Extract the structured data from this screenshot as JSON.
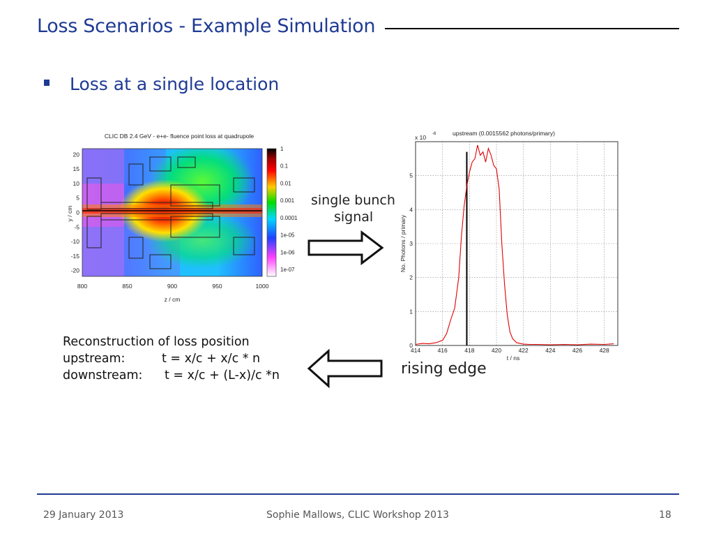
{
  "slide": {
    "title": "Loss Scenarios - Example Simulation",
    "bullet": "Loss at a single location",
    "annotations": {
      "single_bunch_line1": "single bunch",
      "single_bunch_line2": "signal",
      "rising_edge": "rising edge"
    },
    "reconstruction": {
      "heading": "Reconstruction of loss position",
      "upstream_label": "upstream:",
      "upstream_eq": "t = x/c + x/c * n",
      "downstream_label": "downstream:",
      "downstream_eq": "t = x/c + (L-x)/c *n"
    },
    "arrow_right_icon": "arrow-right-outline-icon",
    "arrow_left_icon": "arrow-left-outline-icon"
  },
  "footer": {
    "date": "29 January 2013",
    "center": "Sophie Mallows, CLIC Workshop 2013",
    "page": "18"
  },
  "chart_data": [
    {
      "type": "heatmap",
      "title": "CLIC DB 2.4 GeV - e+e- fluence point loss at quadrupole",
      "xlabel": "z / cm",
      "ylabel": "y / cm",
      "xlim": [
        800,
        1000
      ],
      "ylim": [
        -22,
        22
      ],
      "x_ticks": [
        "800",
        "850",
        "900",
        "950",
        "1000"
      ],
      "y_ticks": [
        "20",
        "15",
        "10",
        "5",
        "0",
        "-5",
        "-10",
        "-15",
        "-20"
      ],
      "colorbar_ticks": [
        "1",
        "0.1",
        "0.01",
        "0.001",
        "0.0001",
        "1e-05",
        "1e-06",
        "1e-07"
      ],
      "colors": [
        "#000000",
        "#ff0000",
        "#ffff00",
        "#00ff00",
        "#00ffff",
        "#0000ff",
        "#ff00ff",
        "#ffffff"
      ]
    },
    {
      "type": "line",
      "title": "upstream (0.0015562 photons/primary)",
      "y_multiplier": "x 10",
      "y_exponent": "-6",
      "xlabel": "t / ns",
      "ylabel": "No. Photons / primary",
      "xlim": [
        414,
        429
      ],
      "ylim": [
        0,
        6
      ],
      "x_ticks": [
        "414",
        "416",
        "418",
        "420",
        "422",
        "424",
        "426",
        "428"
      ],
      "y_ticks": [
        "0",
        "1",
        "2",
        "3",
        "4",
        "5"
      ],
      "marker_line_x": 417.8,
      "grid": true,
      "color": "#e00000",
      "series": [
        {
          "x": [
            414.0,
            414.5,
            415.0,
            415.5,
            416.0,
            416.3,
            416.6,
            416.9,
            417.2,
            417.4,
            417.6,
            417.8,
            418.0,
            418.2,
            418.4,
            418.6,
            418.8,
            419.0,
            419.2,
            419.4,
            419.6,
            419.8,
            420.0,
            420.2,
            420.4,
            420.6,
            420.8,
            421.0,
            421.2,
            421.5,
            422.0,
            422.5,
            423.0,
            424.0,
            425.0,
            426.0,
            427.0,
            428.0,
            428.7
          ],
          "y": [
            0.03,
            0.06,
            0.05,
            0.08,
            0.15,
            0.35,
            0.75,
            1.1,
            2.0,
            3.2,
            4.1,
            4.7,
            5.1,
            5.4,
            5.5,
            5.9,
            5.6,
            5.7,
            5.4,
            5.8,
            5.6,
            5.3,
            5.2,
            4.6,
            3.0,
            1.8,
            0.9,
            0.4,
            0.2,
            0.08,
            0.04,
            0.03,
            0.03,
            0.02,
            0.03,
            0.02,
            0.04,
            0.03,
            0.05
          ]
        }
      ]
    }
  ]
}
